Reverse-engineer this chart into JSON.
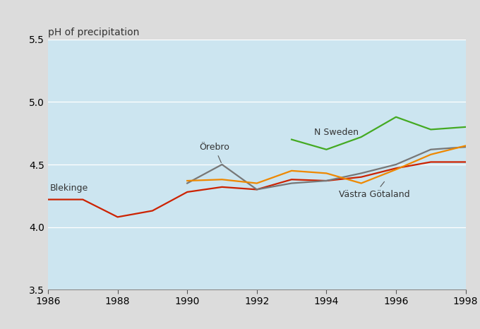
{
  "title": "pH of precipitation",
  "xlim": [
    1986,
    1998
  ],
  "ylim": [
    3.5,
    5.5
  ],
  "yticks": [
    3.5,
    4.0,
    4.5,
    5.0,
    5.5
  ],
  "xticks": [
    1986,
    1988,
    1990,
    1992,
    1994,
    1996,
    1998
  ],
  "plot_bg": "#cce5f0",
  "outer_bg": "#dcdcdc",
  "series": [
    {
      "name": "Blekinge",
      "color": "#cc2200",
      "years": [
        1986,
        1987,
        1988,
        1989,
        1990,
        1991,
        1992,
        1993,
        1994,
        1995,
        1996,
        1997,
        1998
      ],
      "values": [
        4.22,
        4.22,
        4.08,
        4.13,
        4.28,
        4.32,
        4.3,
        4.38,
        4.37,
        4.4,
        4.47,
        4.52,
        4.52
      ]
    },
    {
      "name": "Örebro",
      "color": "#777777",
      "years": [
        1990,
        1991,
        1992,
        1993,
        1994,
        1995,
        1996,
        1997,
        1998
      ],
      "values": [
        4.35,
        4.5,
        4.3,
        4.35,
        4.37,
        4.43,
        4.5,
        4.62,
        4.64
      ]
    },
    {
      "name": "N Sweden",
      "color": "#44aa22",
      "years": [
        1993,
        1994,
        1995,
        1996,
        1997,
        1998
      ],
      "values": [
        4.7,
        4.62,
        4.72,
        4.88,
        4.78,
        4.8
      ]
    },
    {
      "name": "Västra Götaland",
      "color": "#ee8800",
      "years": [
        1990,
        1991,
        1992,
        1993,
        1994,
        1995,
        1996,
        1997,
        1998
      ],
      "values": [
        4.37,
        4.38,
        4.35,
        4.45,
        4.43,
        4.35,
        4.46,
        4.58,
        4.65
      ]
    }
  ],
  "grid_color": "#b8d8e8",
  "spine_color": "#aaaaaa",
  "tick_label_size": 10,
  "title_fontsize": 10,
  "annotation_fontsize": 9,
  "linewidth": 1.6
}
